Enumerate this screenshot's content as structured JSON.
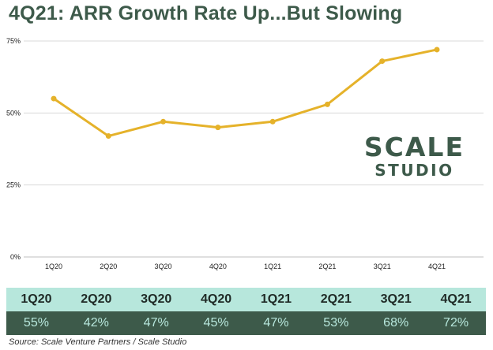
{
  "title": "4Q21: ARR Growth Rate Up...But Slowing",
  "brand": {
    "line1": "SCALE",
    "line2": "STUDIO"
  },
  "source": "Source: Scale Venture Partners / Scale Studio",
  "colors": {
    "line": "#E5B22A",
    "dark": "#3D5A4A",
    "mint": "#B7E7DC",
    "grid": "#D9D9D9"
  },
  "chart_data": {
    "type": "line",
    "categories": [
      "1Q20",
      "2Q20",
      "3Q20",
      "4Q20",
      "1Q21",
      "2Q21",
      "3Q21",
      "4Q21"
    ],
    "series": [
      {
        "values": [
          55,
          42,
          47,
          45,
          47,
          53,
          68,
          72
        ]
      }
    ],
    "y_ticks": [
      "0%",
      "25%",
      "50%",
      "75%"
    ],
    "ylim": [
      0,
      75
    ],
    "grid": true,
    "legend": "none"
  },
  "table": {
    "quarters": [
      "1Q20",
      "2Q20",
      "3Q20",
      "4Q20",
      "1Q21",
      "2Q21",
      "3Q21",
      "4Q21"
    ],
    "values": [
      "55%",
      "42%",
      "47%",
      "45%",
      "47%",
      "53%",
      "68%",
      "72%"
    ]
  }
}
